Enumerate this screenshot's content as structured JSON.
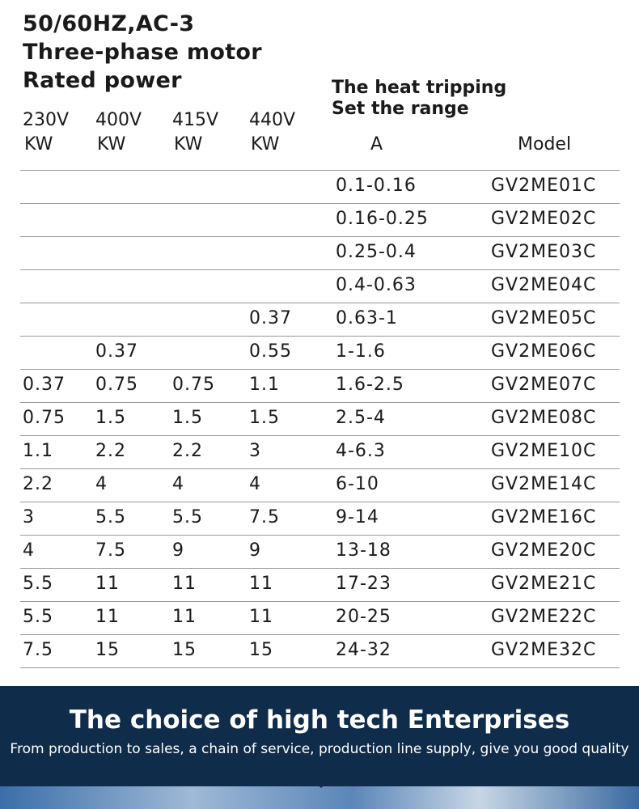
{
  "header": {
    "lines": [
      "50/60HZ,AC-3",
      "Three-phase motor",
      "Rated power"
    ]
  },
  "table": {
    "voltage_columns": [
      {
        "voltage": "230V",
        "unit": "KW"
      },
      {
        "voltage": "400V",
        "unit": "KW"
      },
      {
        "voltage": "415V",
        "unit": "KW"
      },
      {
        "voltage": "440V",
        "unit": "KW"
      }
    ],
    "range_head": [
      "The heat tripping",
      "Set the range"
    ],
    "range_unit": "A",
    "model_head": "Model",
    "rows": [
      [
        null,
        null,
        null,
        null,
        "0.1-0.16",
        "GV2ME01C"
      ],
      [
        null,
        null,
        null,
        null,
        "0.16-0.25",
        "GV2ME02C"
      ],
      [
        null,
        null,
        null,
        null,
        "0.25-0.4",
        "GV2ME03C"
      ],
      [
        null,
        null,
        null,
        null,
        "0.4-0.63",
        "GV2ME04C"
      ],
      [
        null,
        null,
        null,
        "0.37",
        "0.63-1",
        "GV2ME05C"
      ],
      [
        null,
        "0.37",
        null,
        "0.55",
        "1-1.6",
        "GV2ME06C"
      ],
      [
        "0.37",
        "0.75",
        "0.75",
        "1.1",
        "1.6-2.5",
        "GV2ME07C"
      ],
      [
        "0.75",
        "1.5",
        "1.5",
        "1.5",
        "2.5-4",
        "GV2ME08C"
      ],
      [
        "1.1",
        "2.2",
        "2.2",
        "3",
        "4-6.3",
        "GV2ME10C"
      ],
      [
        "2.2",
        "4",
        "4",
        "4",
        "6-10",
        "GV2ME14C"
      ],
      [
        "3",
        "5.5",
        "5.5",
        "7.5",
        "9-14",
        "GV2ME16C"
      ],
      [
        "4",
        "7.5",
        "9",
        "9",
        "13-18",
        "GV2ME20C"
      ],
      [
        "5.5",
        "11",
        "11",
        "11",
        "17-23",
        "GV2ME21C"
      ],
      [
        "5.5",
        "11",
        "11",
        "11",
        "20-25",
        "GV2ME22C"
      ],
      [
        "7.5",
        "15",
        "15",
        "15",
        "24-32",
        "GV2ME32C"
      ]
    ]
  },
  "banner": {
    "title": "The choice of high tech Enterprises",
    "subtitle": "From production to sales, a chain of service, production line supply, give you good quality"
  }
}
